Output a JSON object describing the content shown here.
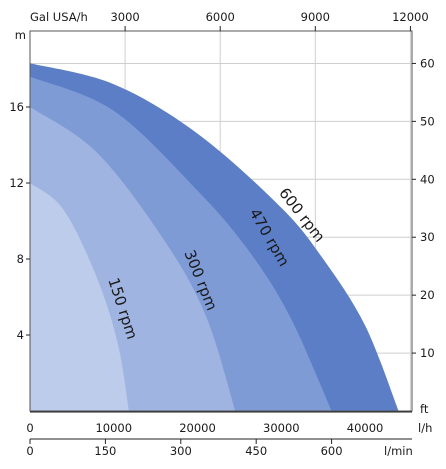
{
  "chart_data": {
    "type": "area",
    "axes": {
      "left": {
        "unit": "m",
        "ticks": [
          4,
          8,
          12,
          16
        ],
        "range": [
          0,
          20
        ]
      },
      "right": {
        "unit": "ft",
        "ticks": [
          10,
          20,
          30,
          40,
          50,
          60
        ],
        "range": [
          0,
          65.6
        ]
      },
      "bottom_primary": {
        "unit": "l/h",
        "ticks": [
          0,
          10000,
          20000,
          30000,
          40000
        ],
        "range": [
          0,
          45600
        ]
      },
      "bottom_secondary": {
        "unit": "l/min",
        "ticks": [
          0,
          150,
          300,
          450,
          600
        ],
        "range": [
          0,
          760
        ]
      },
      "top": {
        "unit": "Gal USA/h",
        "ticks": [
          3000,
          6000,
          9000,
          12000
        ],
        "range": [
          0,
          12050
        ]
      }
    },
    "grid": true,
    "series": [
      {
        "name": "600 rpm",
        "color": "#5b7ec6",
        "x": [
          0,
          10000,
          20000,
          30000,
          35000,
          40000,
          44000
        ],
        "y": [
          18.3,
          17.2,
          14.6,
          10.7,
          8.0,
          4.5,
          0
        ]
      },
      {
        "name": "470 rpm",
        "color": "#7f9bd6",
        "x": [
          0,
          10000,
          20000,
          26000,
          31000,
          36000
        ],
        "y": [
          17.6,
          15.8,
          11.6,
          8.5,
          5.0,
          0
        ]
      },
      {
        "name": "300 rpm",
        "color": "#9fb4e0",
        "x": [
          0,
          8000,
          16000,
          21000,
          24500
        ],
        "y": [
          16.0,
          13.6,
          9.0,
          5.0,
          0
        ]
      },
      {
        "name": "150 rpm",
        "color": "#bcccea",
        "x": [
          0,
          4000,
          8000,
          10500,
          11800
        ],
        "y": [
          12.0,
          10.6,
          7.0,
          3.5,
          0
        ]
      }
    ]
  }
}
